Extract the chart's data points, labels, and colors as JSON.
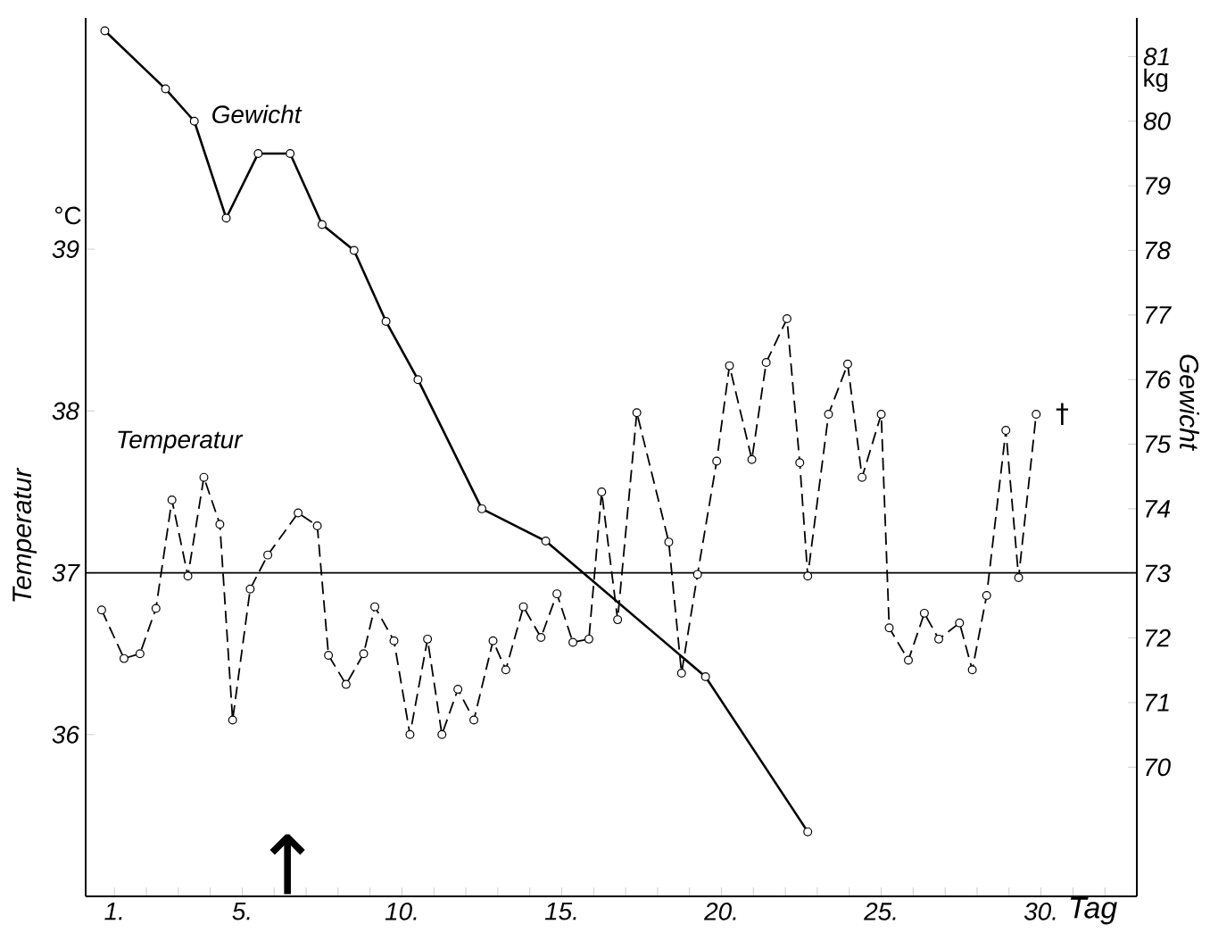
{
  "chart_data": {
    "type": "line",
    "xlabel": "Tag",
    "ylabel": "Temperatur",
    "y2label": "Gewicht",
    "xlim": [
      0.1,
      33.0
    ],
    "ylim": [
      35,
      40.43
    ],
    "y2lim": [
      68,
      81.6
    ],
    "xticks": [
      {
        "value": 1,
        "label": "1."
      },
      {
        "value": 2,
        "label": null
      },
      {
        "value": 3,
        "label": null
      },
      {
        "value": 4,
        "label": null
      },
      {
        "value": 5,
        "label": "5."
      },
      {
        "value": 6,
        "label": null
      },
      {
        "value": 7,
        "label": null
      },
      {
        "value": 8,
        "label": null
      },
      {
        "value": 9,
        "label": null
      },
      {
        "value": 10,
        "label": "10."
      },
      {
        "value": 11,
        "label": null
      },
      {
        "value": 12,
        "label": null
      },
      {
        "value": 13,
        "label": null
      },
      {
        "value": 14,
        "label": null
      },
      {
        "value": 15,
        "label": "15."
      },
      {
        "value": 16,
        "label": null
      },
      {
        "value": 17,
        "label": null
      },
      {
        "value": 18,
        "label": null
      },
      {
        "value": 19,
        "label": null
      },
      {
        "value": 20,
        "label": "20."
      },
      {
        "value": 21,
        "label": null
      },
      {
        "value": 22,
        "label": null
      },
      {
        "value": 23,
        "label": null
      },
      {
        "value": 24,
        "label": null
      },
      {
        "value": 25,
        "label": "25."
      },
      {
        "value": 26,
        "label": null
      },
      {
        "value": 27,
        "label": null
      },
      {
        "value": 28,
        "label": null
      },
      {
        "value": 29,
        "label": null
      },
      {
        "value": 30,
        "label": "30."
      },
      {
        "value": 31,
        "label": null
      },
      {
        "value": 32,
        "label": null
      }
    ],
    "yticks": [
      36,
      37,
      38,
      39
    ],
    "y2ticks": [
      70,
      71,
      72,
      73,
      74,
      75,
      76,
      77,
      78,
      79,
      80,
      81
    ],
    "ref_lines": [
      {
        "axis": "y",
        "value": 37
      }
    ],
    "annotations": [
      "°C",
      "kg",
      "†",
      "↑"
    ],
    "series": [
      {
        "name": "Gewicht",
        "color": "#000000",
        "axis": "y2",
        "line_style": "solid",
        "marker": "circle",
        "x": [
          0.7,
          2.6,
          3.5,
          4.5,
          5.5,
          6.5,
          7.5,
          8.5,
          9.5,
          10.5,
          12.5,
          14.5,
          19.5,
          22.7
        ],
        "values": [
          81.4,
          80.5,
          80.0,
          78.5,
          79.5,
          79.5,
          78.4,
          78.0,
          76.9,
          76.0,
          74.0,
          73.5,
          71.4,
          69.0
        ]
      },
      {
        "name": "Temperatur",
        "color": "#000000",
        "line_style": "dashed",
        "marker": "circle",
        "x": [
          0.6,
          1.3,
          1.8,
          2.3,
          2.8,
          3.3,
          3.8,
          4.3,
          4.7,
          5.25,
          5.8,
          6.75,
          7.35,
          7.7,
          8.25,
          8.8,
          9.15,
          9.75,
          10.25,
          10.8,
          11.25,
          11.75,
          12.25,
          12.85,
          13.25,
          13.8,
          14.35,
          14.85,
          15.35,
          15.85,
          16.25,
          16.75,
          17.35,
          18.35,
          18.75,
          19.25,
          19.85,
          20.25,
          20.95,
          21.4,
          22.05,
          22.45,
          22.7,
          23.35,
          23.95,
          24.4,
          25.0,
          25.25,
          25.85,
          26.35,
          26.8,
          27.45,
          27.85,
          28.3,
          28.9,
          29.3,
          29.85
        ],
        "values": [
          36.77,
          36.47,
          36.5,
          36.78,
          37.45,
          36.98,
          37.59,
          37.3,
          36.09,
          36.9,
          37.11,
          37.37,
          37.29,
          36.49,
          36.31,
          36.5,
          36.79,
          36.58,
          36.0,
          36.59,
          36.0,
          36.28,
          36.09,
          36.58,
          36.4,
          36.79,
          36.6,
          36.87,
          36.57,
          36.59,
          37.5,
          36.71,
          37.99,
          37.19,
          36.38,
          36.99,
          37.69,
          38.28,
          37.7,
          38.3,
          38.57,
          37.68,
          36.98,
          37.98,
          38.29,
          37.59,
          37.98,
          36.66,
          36.46,
          36.75,
          36.59,
          36.69,
          36.4,
          36.86,
          37.88,
          36.97,
          37.98
        ]
      }
    ]
  }
}
